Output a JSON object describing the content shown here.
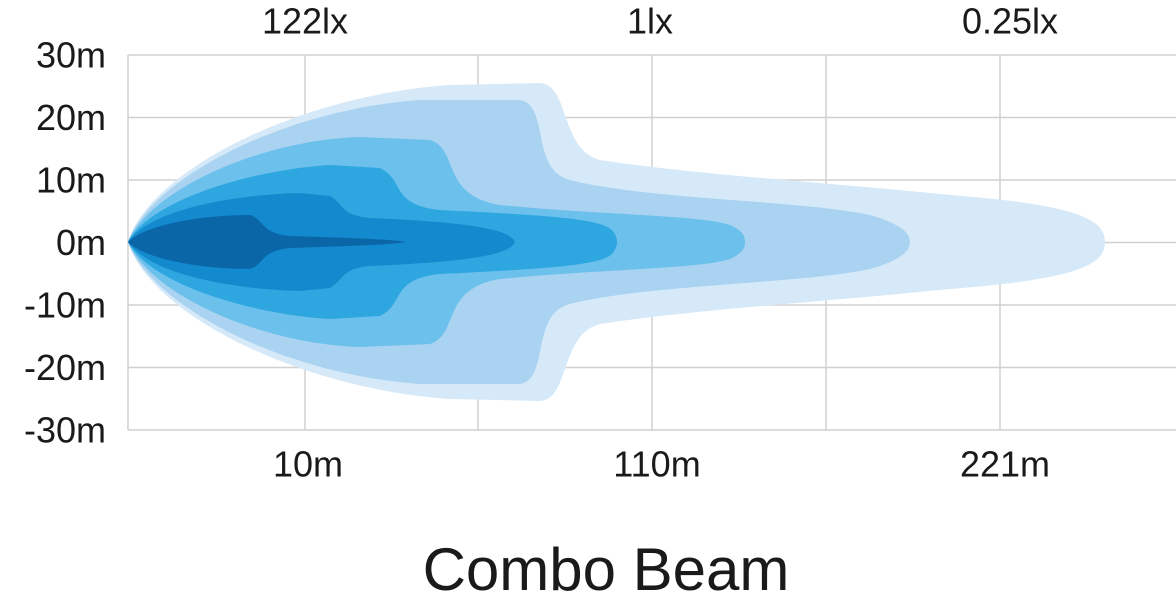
{
  "lux_labels": [
    "122lx",
    "1lx",
    "0.25lx"
  ],
  "y_axis": {
    "ticks": [
      "30m",
      "20m",
      "10m",
      "0m",
      "-10m",
      "-20m",
      "-30m"
    ]
  },
  "x_axis": {
    "labels": [
      "10m",
      "110m",
      "221m"
    ]
  },
  "title": "Combo Beam"
}
